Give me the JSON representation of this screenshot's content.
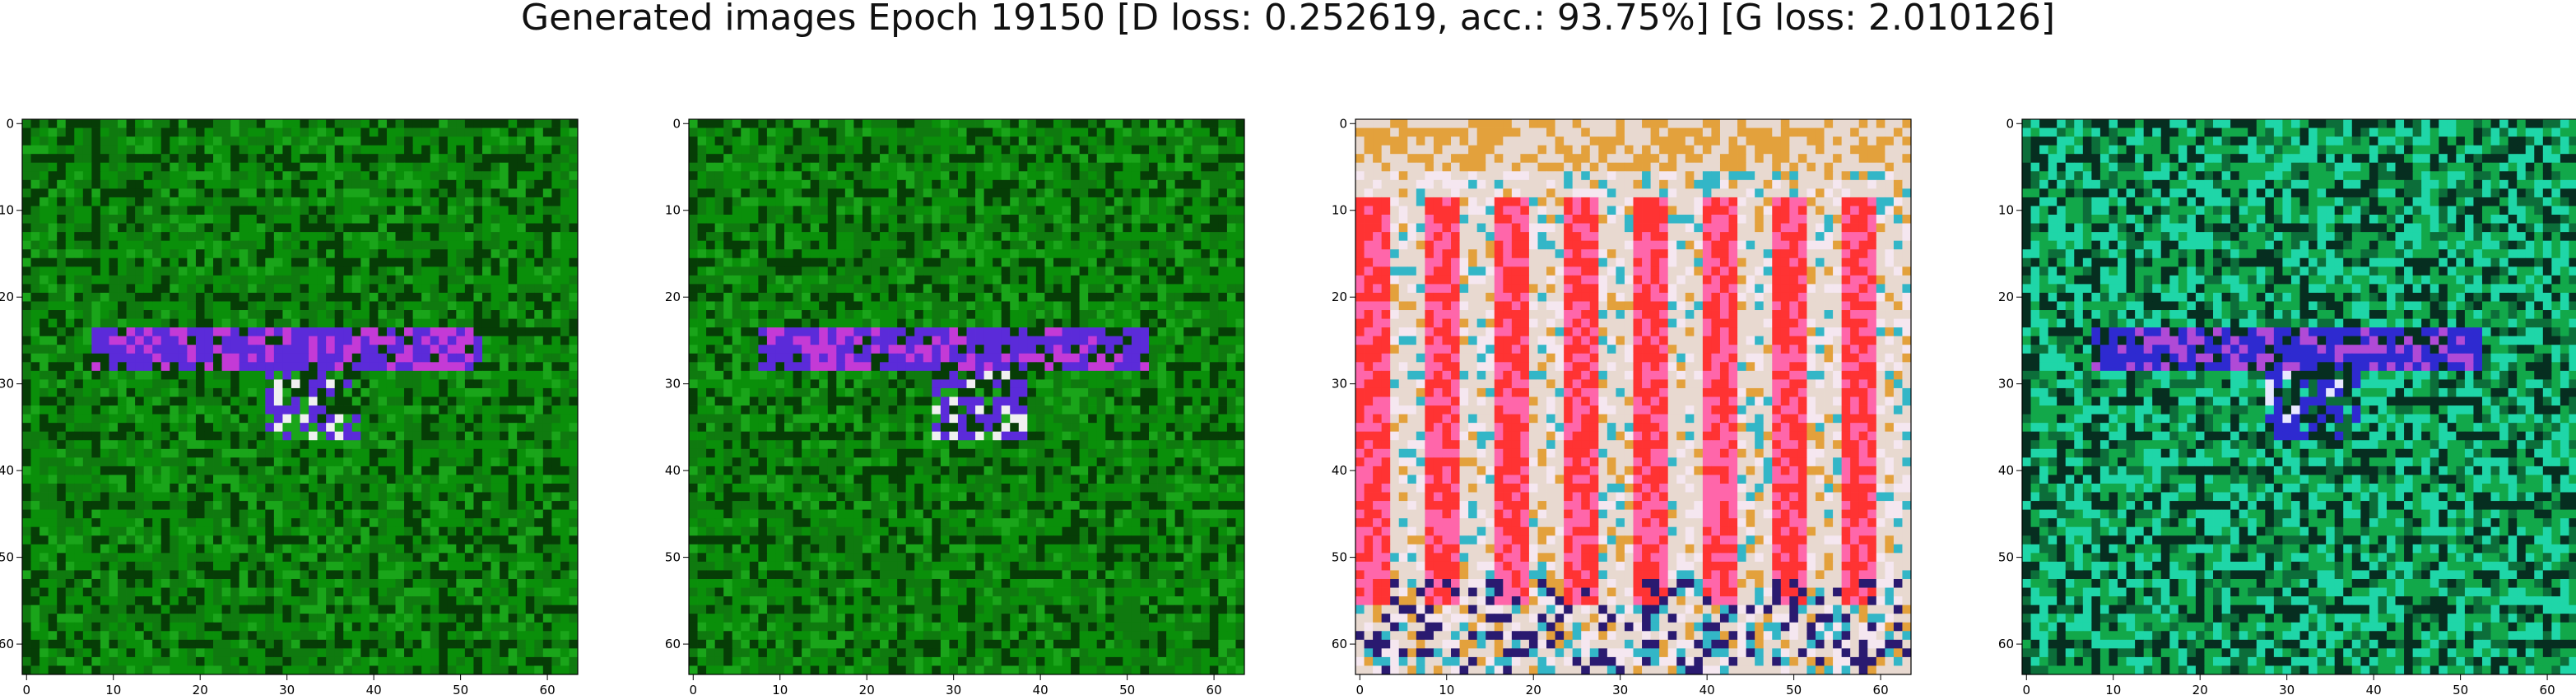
{
  "title": "Generated images Epoch 19150 [D loss: 0.252619, acc.: 93.75%] [G loss: 2.010126]",
  "panels": [
    {
      "name": "generated-image-1",
      "palette": [
        "#0a8f0a",
        "#0f7a0f",
        "#1aa51a",
        "#063d06",
        "#5b2bd9",
        "#c43ad6",
        "#f0f0f0"
      ],
      "x_ticks": [
        "0",
        "10",
        "20",
        "30",
        "40",
        "50",
        "60"
      ],
      "y_ticks": [
        "0",
        "10",
        "20",
        "30",
        "40",
        "50",
        "60"
      ]
    },
    {
      "name": "generated-image-2",
      "palette": [
        "#0a8f0a",
        "#0f7a0f",
        "#1aa51a",
        "#063d06",
        "#5b2bd9",
        "#c43ad6",
        "#f0f0f0"
      ],
      "x_ticks": [
        "0",
        "10",
        "20",
        "30",
        "40",
        "50",
        "60"
      ],
      "y_ticks": [
        "0",
        "10",
        "20",
        "30",
        "40",
        "50",
        "60"
      ]
    },
    {
      "name": "generated-image-3",
      "palette": [
        "#e8d9d0",
        "#ff3333",
        "#ff66aa",
        "#e3a13c",
        "#33b6c7",
        "#f5e7f0",
        "#2a1a70"
      ],
      "x_ticks": [
        "0",
        "10",
        "20",
        "30",
        "40",
        "50",
        "60"
      ],
      "y_ticks": [
        "0",
        "10",
        "20",
        "30",
        "40",
        "50",
        "60"
      ]
    },
    {
      "name": "generated-image-4",
      "palette": [
        "#12a84a",
        "#1fd6a8",
        "#0c6e3a",
        "#062e20",
        "#2e2ad0",
        "#b04ad6",
        "#e8e8ff"
      ],
      "x_ticks": [
        "0",
        "10",
        "20",
        "30",
        "40",
        "50",
        "60"
      ],
      "y_ticks": [
        "0",
        "10",
        "20",
        "30",
        "40",
        "50",
        "60"
      ]
    }
  ]
}
